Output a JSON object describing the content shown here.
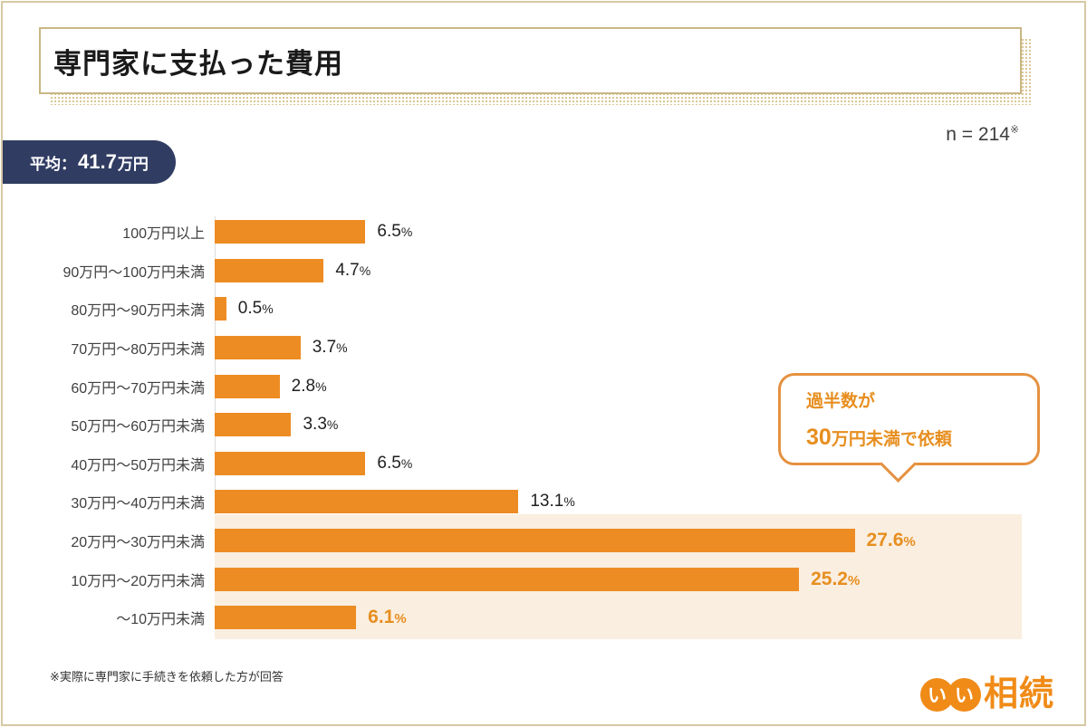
{
  "header": {
    "title": "専門家に支払った費用",
    "sample_label": "n = 214",
    "sample_sup": "※"
  },
  "average_badge": {
    "label": "平均：",
    "value": "41.7",
    "unit": "万円"
  },
  "callout": {
    "line1": "過半数が",
    "line2_em": "30",
    "line2_rest": "万円未満で依頼"
  },
  "footnote": "※実際に専門家に手続きを依頼した方が回答",
  "logo": {
    "circle1": "い",
    "circle2": "い",
    "text": "相続"
  },
  "chart_data": {
    "type": "bar",
    "orientation": "horizontal",
    "title": "専門家に支払った費用",
    "unit": "%",
    "categories": [
      "100万円以上",
      "90万円〜100万円未満",
      "80万円〜90万円未満",
      "70万円〜80万円未満",
      "60万円〜70万円未満",
      "50万円〜60万円未満",
      "40万円〜50万円未満",
      "30万円〜40万円未満",
      "20万円〜30万円未満",
      "10万円〜20万円未満",
      "〜10万円未満"
    ],
    "values": [
      6.5,
      4.7,
      0.5,
      3.7,
      2.8,
      3.3,
      6.5,
      13.1,
      27.6,
      25.2,
      6.1
    ],
    "highlight_indices": [
      8,
      9,
      10
    ],
    "highlight_note": "過半数が30万円未満で依頼",
    "xlim": [
      0,
      34.8
    ],
    "grid": false,
    "legend": false,
    "colors": {
      "bar": "#ED8C23",
      "highlight_band": "#FAEEE0",
      "emphasis_text": "#E78E1F",
      "axis_line": "#DBDBDB",
      "badge_navy": "#303C62",
      "frame_tan": "#D6CAA4",
      "title_border_tan": "#C9B784",
      "logo_orange": "#F08B18"
    }
  }
}
